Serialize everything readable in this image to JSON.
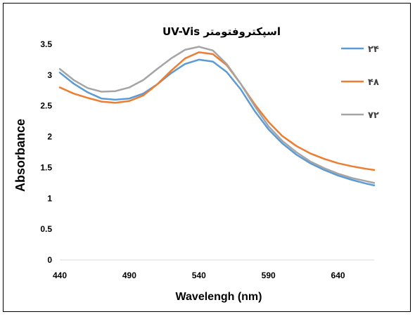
{
  "chart_data": {
    "type": "line",
    "title": "اسپکتروفتومتر UV-Vis",
    "xlabel": "Wavelengh (nm)",
    "ylabel": "Absorbance",
    "xlim": [
      440,
      666
    ],
    "ylim": [
      0,
      3.5
    ],
    "x_ticks": [
      "440",
      "490",
      "540",
      "590",
      "640"
    ],
    "y_ticks": [
      "0",
      "0.5",
      "1",
      "1.5",
      "2",
      "2.5",
      "3",
      "3.5"
    ],
    "grid": false,
    "legend_position": "right",
    "x": [
      440,
      450,
      460,
      470,
      480,
      490,
      500,
      510,
      520,
      530,
      540,
      550,
      560,
      570,
      580,
      590,
      600,
      610,
      620,
      630,
      640,
      650,
      660,
      666
    ],
    "series": [
      {
        "name": "۲۴",
        "color": "#5B9BD5",
        "values": [
          3.04,
          2.86,
          2.72,
          2.62,
          2.6,
          2.62,
          2.7,
          2.85,
          3.03,
          3.18,
          3.25,
          3.22,
          3.05,
          2.77,
          2.42,
          2.12,
          1.89,
          1.71,
          1.57,
          1.46,
          1.37,
          1.3,
          1.24,
          1.21
        ]
      },
      {
        "name": "۴۸",
        "color": "#ED7D31",
        "values": [
          2.8,
          2.7,
          2.63,
          2.57,
          2.55,
          2.58,
          2.67,
          2.85,
          3.07,
          3.27,
          3.37,
          3.34,
          3.16,
          2.86,
          2.53,
          2.24,
          2.01,
          1.85,
          1.73,
          1.64,
          1.57,
          1.52,
          1.48,
          1.46
        ]
      },
      {
        "name": "۷۲",
        "color": "#A5A5A5",
        "values": [
          3.1,
          2.92,
          2.79,
          2.73,
          2.74,
          2.8,
          2.92,
          3.1,
          3.27,
          3.41,
          3.46,
          3.4,
          3.18,
          2.86,
          2.5,
          2.17,
          1.93,
          1.75,
          1.6,
          1.49,
          1.4,
          1.33,
          1.28,
          1.25
        ]
      }
    ]
  }
}
